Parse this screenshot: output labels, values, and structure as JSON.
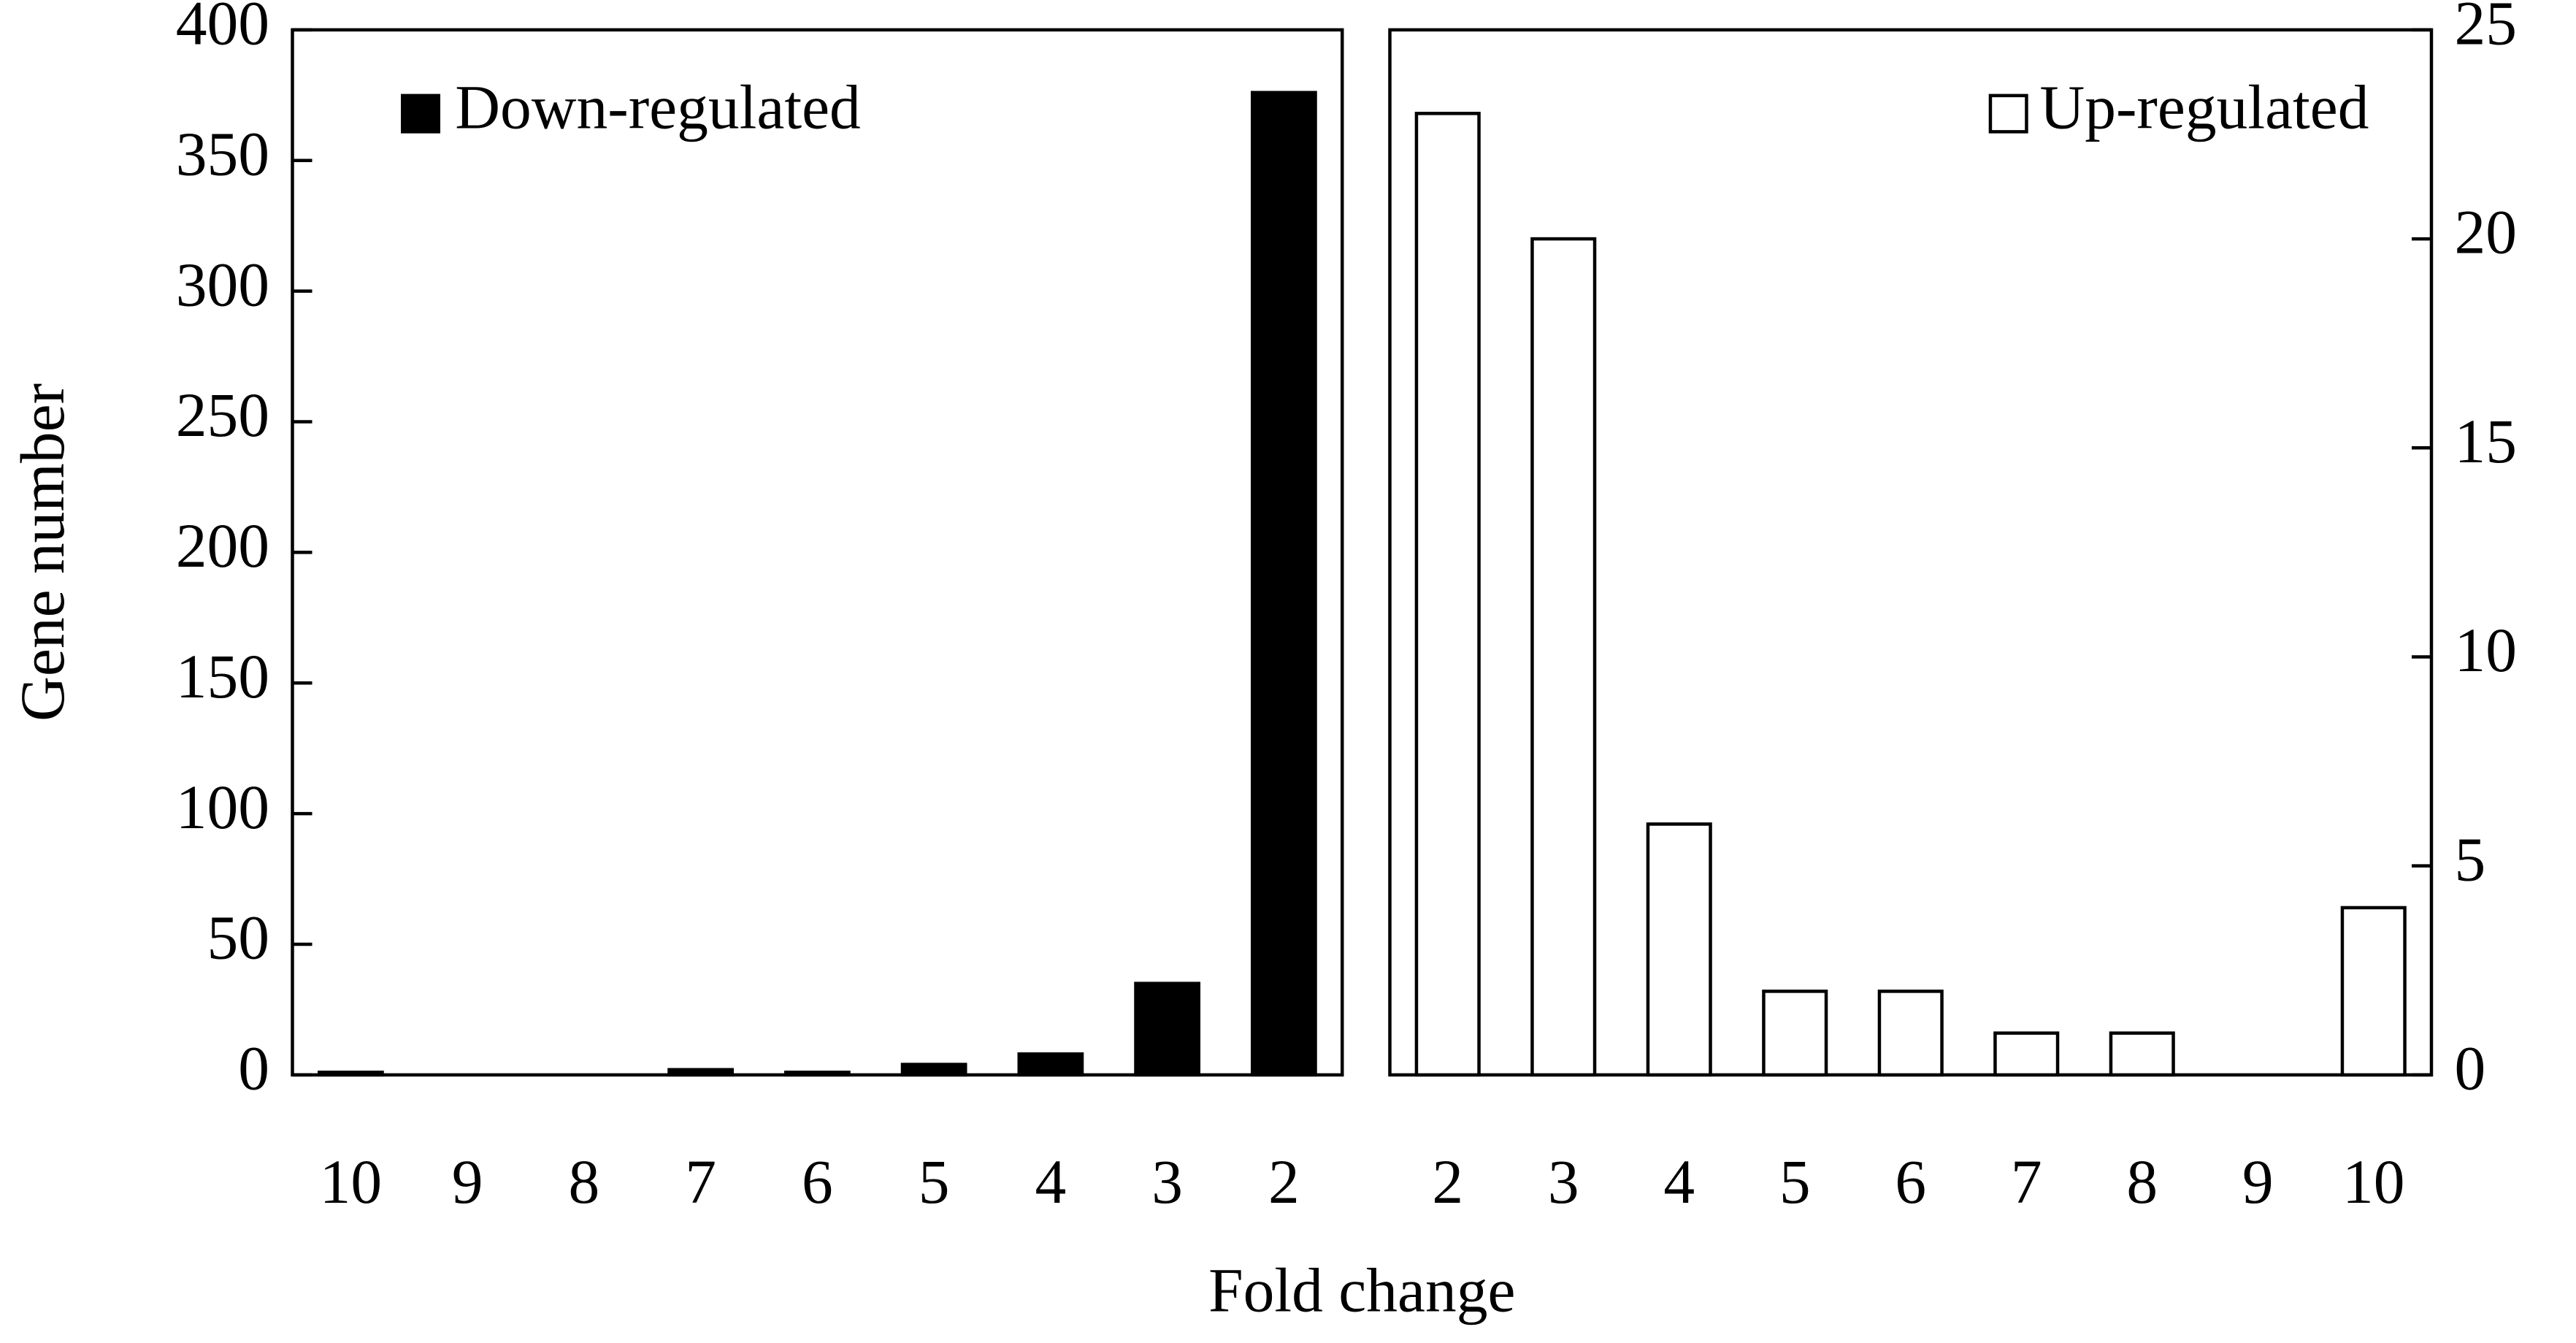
{
  "chart_data": [
    {
      "type": "bar",
      "ylabel": "Gene number",
      "xlabel": "Fold change",
      "categories": [
        "10",
        "9",
        "8",
        "7",
        "6",
        "5",
        "4",
        "3",
        "2"
      ],
      "series": [
        {
          "name": "Down-regulated",
          "color": "#000000",
          "values": [
            1,
            0,
            0,
            2,
            1,
            4,
            8,
            35,
            376
          ]
        }
      ],
      "ylim": [
        0,
        400
      ],
      "yticks": [
        0,
        50,
        100,
        150,
        200,
        250,
        300,
        350,
        400
      ],
      "y_axis_position": "left",
      "legend": "upper left"
    },
    {
      "type": "bar",
      "categories": [
        "2",
        "3",
        "4",
        "5",
        "6",
        "7",
        "8",
        "9",
        "10"
      ],
      "series": [
        {
          "name": "Up-regulated",
          "color": "#ffffff",
          "values": [
            23,
            20,
            6,
            2,
            2,
            1,
            1,
            0,
            4
          ]
        }
      ],
      "ylim": [
        0,
        25
      ],
      "yticks": [
        0,
        5,
        10,
        15,
        20,
        25
      ],
      "y_axis_position": "right",
      "legend": "upper right"
    }
  ]
}
